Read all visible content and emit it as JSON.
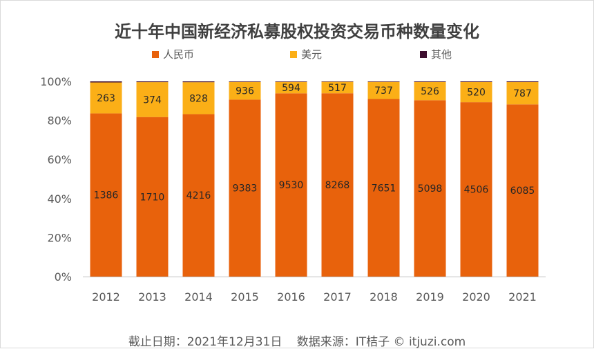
{
  "colors": {
    "rmb": "#E8620C",
    "usd": "#FBAF17",
    "other": "#3E0E2F"
  },
  "chart_data": {
    "type": "bar",
    "stacked": "percent",
    "title": "近十年中国新经济私募股权投资交易币种数量变化",
    "categories": [
      "2012",
      "2013",
      "2014",
      "2015",
      "2016",
      "2017",
      "2018",
      "2019",
      "2020",
      "2021"
    ],
    "series": [
      {
        "name": "人民币",
        "values": [
          1386,
          1710,
          4216,
          9383,
          9530,
          8268,
          7651,
          5098,
          4506,
          6085
        ]
      },
      {
        "name": "美元",
        "values": [
          263,
          374,
          828,
          936,
          594,
          517,
          737,
          526,
          520,
          787
        ]
      },
      {
        "name": "其他",
        "values": [
          9,
          8,
          21,
          30,
          27,
          19,
          22,
          18,
          17,
          25
        ]
      }
    ],
    "ytick_labels": [
      "0%",
      "20%",
      "40%",
      "60%",
      "80%",
      "100%"
    ],
    "ylim": [
      0,
      1
    ],
    "legend_position": "top"
  },
  "footer": {
    "date_text": "截止日期：2021年12月31日",
    "source_text": "数据来源：IT桔子 © itjuzi.com"
  }
}
